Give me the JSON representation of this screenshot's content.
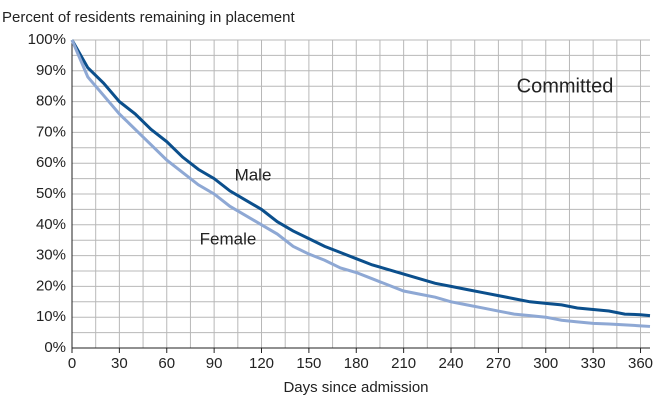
{
  "chart_data": {
    "type": "line",
    "title": "Percent of residents remaining in placement",
    "xlabel": "Days since admission",
    "annotations": [
      "Committed",
      "Male",
      "Female"
    ],
    "x": [
      0,
      10,
      20,
      30,
      40,
      50,
      60,
      70,
      80,
      90,
      100,
      110,
      120,
      130,
      140,
      150,
      160,
      170,
      180,
      190,
      200,
      210,
      220,
      230,
      240,
      250,
      260,
      270,
      280,
      290,
      300,
      310,
      320,
      330,
      340,
      350,
      360,
      366
    ],
    "series": [
      {
        "name": "Male",
        "color": "#0b4f8c",
        "values": [
          100,
          91,
          86,
          80,
          76,
          71,
          67,
          62,
          58,
          55,
          51,
          48,
          45,
          41,
          38,
          35.5,
          33,
          31,
          29,
          27,
          25.5,
          24,
          22.5,
          21,
          20,
          19,
          18,
          17,
          16,
          15,
          14.5,
          14,
          13,
          12.5,
          12,
          11,
          10.8,
          10.5
        ]
      },
      {
        "name": "Female",
        "color": "#8ea8d4",
        "values": [
          100,
          88,
          82,
          76,
          71,
          66,
          61,
          57,
          53,
          50,
          46,
          43,
          40,
          37,
          33,
          30.5,
          28.5,
          26,
          24.5,
          22.5,
          20.5,
          18.5,
          17.5,
          16.5,
          15,
          14,
          13,
          12,
          11,
          10.5,
          10,
          9,
          8.5,
          8,
          7.8,
          7.5,
          7.2,
          7
        ]
      }
    ],
    "xlim": [
      0,
      366
    ],
    "xticks": [
      0,
      30,
      60,
      90,
      120,
      150,
      180,
      210,
      240,
      270,
      300,
      330,
      360
    ],
    "xminor": [
      15,
      45,
      75,
      105,
      135,
      165,
      195,
      225,
      255,
      285,
      315,
      345
    ],
    "ylim": [
      0,
      100
    ],
    "yticks": [
      {
        "value": 0,
        "label": "0%"
      },
      {
        "value": 10,
        "label": "10%"
      },
      {
        "value": 20,
        "label": "20%"
      },
      {
        "value": 30,
        "label": "30%"
      },
      {
        "value": 40,
        "label": "40%"
      },
      {
        "value": 50,
        "label": "50%"
      },
      {
        "value": 60,
        "label": "60%"
      },
      {
        "value": 70,
        "label": "70%"
      },
      {
        "value": 80,
        "label": "80%"
      },
      {
        "value": 90,
        "label": "90%"
      },
      {
        "value": 100,
        "label": "100%"
      }
    ],
    "yminor": [
      5,
      15,
      25,
      35,
      45,
      55,
      65,
      75,
      85,
      95
    ],
    "grid": true
  }
}
